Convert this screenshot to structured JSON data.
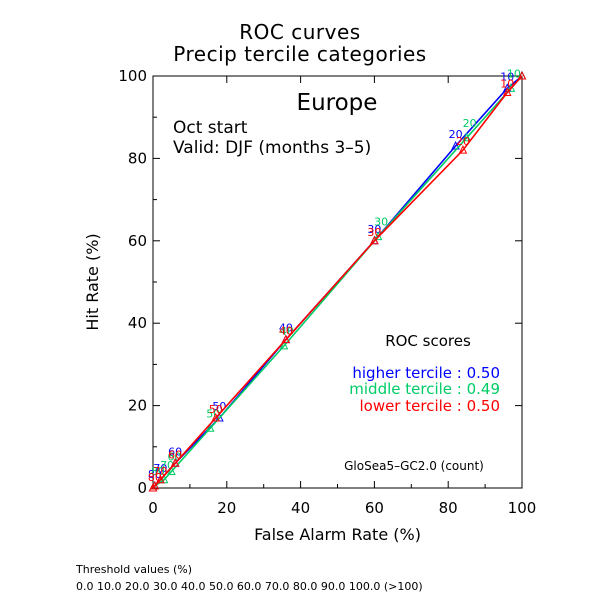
{
  "title": "ROC curves",
  "subtitle": "Precip tercile categories",
  "footer": {
    "heading": "Threshold values (%)",
    "values": "0.0 10.0 20.0 30.0 40.0 50.0 60.0 70.0 80.0 90.0 100.0 (>100)"
  },
  "chart_data": {
    "type": "line",
    "title": "ROC curves",
    "subtitle": "Precip tercile categories",
    "region": "Europe",
    "start": "Oct start",
    "valid": "Valid: DJF (months 3–5)",
    "xlabel": "False Alarm Rate (%)",
    "ylabel": "Hit Rate (%)",
    "xlim": [
      0,
      100
    ],
    "ylim": [
      0,
      100
    ],
    "xticks": [
      "0",
      "20",
      "40",
      "60",
      "80",
      "100"
    ],
    "yticks": [
      "0",
      "20",
      "40",
      "60",
      "80",
      "100"
    ],
    "grid": false,
    "scores_heading": "ROC scores",
    "model": "GloSea5–GC2.0 (count)",
    "diagonal": true,
    "series": [
      {
        "name": "higher tercile",
        "score_label": "higher tercile : 0.50",
        "color": "#0000ff",
        "marker": "triangle",
        "x": [
          0,
          0.5,
          2,
          6,
          18,
          36,
          60,
          82,
          96,
          100
        ],
        "y": [
          0,
          0.5,
          2,
          6,
          17,
          36,
          60,
          83,
          97,
          100
        ],
        "labels": [
          "",
          "80",
          "70",
          "60",
          "50",
          "40",
          "30",
          "20",
          "10",
          ""
        ]
      },
      {
        "name": "middle tercile",
        "score_label": "middle tercile : 0.49",
        "color": "#00cc66",
        "marker": "triangle",
        "x": [
          0,
          0.5,
          3,
          5,
          15.5,
          35.5,
          61,
          85,
          97,
          100
        ],
        "y": [
          0,
          0.5,
          2,
          4,
          14.5,
          34.5,
          61,
          85,
          97,
          100
        ],
        "labels": [
          "",
          "80",
          "70",
          "60",
          "50",
          "40",
          "30",
          "20",
          "10",
          ""
        ]
      },
      {
        "name": "lower tercile",
        "score_label": "lower tercile : 0.50",
        "color": "#ff0000",
        "marker": "triangle",
        "x": [
          0,
          0.5,
          2,
          6,
          17,
          36,
          60,
          84,
          96,
          100
        ],
        "y": [
          0,
          0.5,
          2,
          6,
          17,
          36,
          60,
          82,
          96,
          100
        ],
        "labels": [
          "",
          "80",
          "70",
          "60",
          "50",
          "40",
          "30",
          "20",
          "10",
          ""
        ]
      }
    ]
  }
}
